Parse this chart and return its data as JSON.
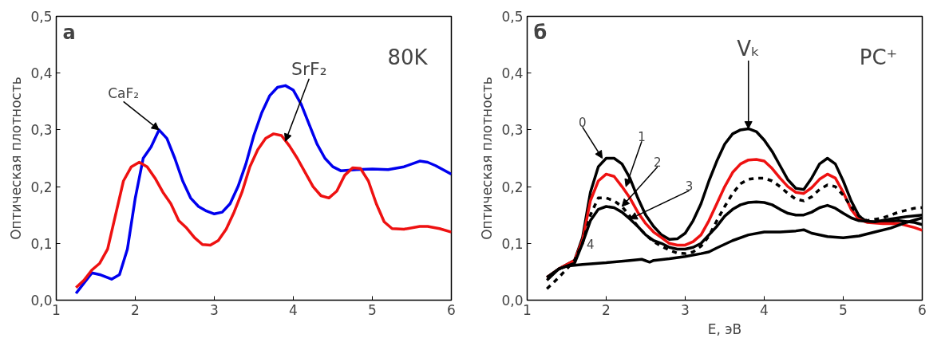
{
  "chart_data": [
    {
      "type": "line",
      "ylabel": "Оптическая плотность",
      "xlim": [
        1,
        6
      ],
      "ylim": [
        0,
        0.5
      ],
      "xticks": [
        1,
        2,
        3,
        4,
        5,
        6
      ],
      "yticks": [
        {
          "value": 0,
          "label": "0,0"
        },
        {
          "value": 0.1,
          "label": "0,1"
        },
        {
          "value": 0.2,
          "label": "0,2"
        },
        {
          "value": 0.3,
          "label": "0,3"
        },
        {
          "value": 0.4,
          "label": "0,4"
        },
        {
          "value": 0.5,
          "label": "0,5"
        }
      ],
      "grid": false,
      "line_style": "solid",
      "annotations": [
        "а",
        "80K",
        {
          "text": "CaF₂",
          "x": 2.3,
          "y": 0.3
        },
        {
          "text": "SrF₂",
          "x": 3.9,
          "y": 0.28
        }
      ],
      "series": [
        {
          "color": "#0000ee",
          "x": [
            1.25,
            1.35,
            1.45,
            1.55,
            1.7,
            1.8,
            1.9,
            2.0,
            2.1,
            2.2,
            2.3,
            2.4,
            2.5,
            2.6,
            2.7,
            2.8,
            2.9,
            3.0,
            3.1,
            3.2,
            3.3,
            3.4,
            3.5,
            3.6,
            3.7,
            3.8,
            3.9,
            4.0,
            4.1,
            4.2,
            4.3,
            4.4,
            4.5,
            4.6,
            4.8,
            5.0,
            5.2,
            5.4,
            5.6,
            5.7,
            5.8,
            6.0
          ],
          "values": [
            0.012,
            0.03,
            0.048,
            0.045,
            0.037,
            0.045,
            0.09,
            0.18,
            0.25,
            0.27,
            0.3,
            0.285,
            0.25,
            0.21,
            0.18,
            0.165,
            0.157,
            0.152,
            0.155,
            0.17,
            0.2,
            0.24,
            0.29,
            0.33,
            0.36,
            0.375,
            0.378,
            0.37,
            0.345,
            0.31,
            0.275,
            0.25,
            0.235,
            0.228,
            0.23,
            0.231,
            0.23,
            0.235,
            0.245,
            0.243,
            0.237,
            0.222
          ]
        },
        {
          "color": "#ee1111",
          "x": [
            1.25,
            1.35,
            1.45,
            1.55,
            1.65,
            1.75,
            1.85,
            1.95,
            2.05,
            2.15,
            2.25,
            2.35,
            2.45,
            2.55,
            2.65,
            2.75,
            2.85,
            2.95,
            3.05,
            3.15,
            3.25,
            3.35,
            3.45,
            3.55,
            3.65,
            3.75,
            3.85,
            3.95,
            4.05,
            4.15,
            4.25,
            4.35,
            4.45,
            4.55,
            4.65,
            4.75,
            4.85,
            4.95,
            5.05,
            5.15,
            5.25,
            5.4,
            5.6,
            5.7,
            5.85,
            6.0
          ],
          "values": [
            0.022,
            0.035,
            0.053,
            0.065,
            0.09,
            0.15,
            0.21,
            0.235,
            0.243,
            0.235,
            0.215,
            0.19,
            0.17,
            0.14,
            0.127,
            0.11,
            0.098,
            0.097,
            0.105,
            0.125,
            0.155,
            0.19,
            0.235,
            0.265,
            0.285,
            0.293,
            0.29,
            0.272,
            0.25,
            0.225,
            0.2,
            0.184,
            0.18,
            0.192,
            0.22,
            0.233,
            0.232,
            0.21,
            0.17,
            0.138,
            0.126,
            0.125,
            0.13,
            0.13,
            0.126,
            0.12
          ]
        }
      ]
    },
    {
      "type": "line",
      "xlabel": "E, эВ",
      "ylabel": "Оптическая плотность",
      "xlim": [
        1,
        6
      ],
      "ylim": [
        0,
        0.5
      ],
      "xticks": [
        1,
        2,
        3,
        4,
        5,
        6
      ],
      "yticks": [
        {
          "value": 0,
          "label": "0,0"
        },
        {
          "value": 0.1,
          "label": "0,1"
        },
        {
          "value": 0.2,
          "label": "0,2"
        },
        {
          "value": 0.3,
          "label": "0,3"
        },
        {
          "value": 0.4,
          "label": "0,4"
        },
        {
          "value": 0.5,
          "label": "0,5"
        }
      ],
      "grid": false,
      "line_style": "solid",
      "annotations": [
        "б",
        "PC⁺",
        {
          "text": "Vₖ",
          "x": 3.8,
          "y": 0.302
        },
        {
          "text": "0",
          "x": 1.95,
          "y": 0.25
        },
        {
          "text": "1",
          "x": 2.25,
          "y": 0.2
        },
        {
          "text": "2",
          "x": 2.2,
          "y": 0.165
        },
        {
          "text": "3",
          "x": 2.3,
          "y": 0.143
        },
        {
          "text": "4",
          "x": 2.0,
          "y": 0.066
        }
      ],
      "series": [
        {
          "color": "#000000",
          "x": [
            1.25,
            1.4,
            1.6,
            1.7,
            1.8,
            1.9,
            2.0,
            2.1,
            2.2,
            2.3,
            2.4,
            2.5,
            2.6,
            2.7,
            2.8,
            2.9,
            3.0,
            3.1,
            3.2,
            3.3,
            3.4,
            3.5,
            3.6,
            3.7,
            3.8,
            3.9,
            4.0,
            4.1,
            4.2,
            4.3,
            4.4,
            4.5,
            4.6,
            4.7,
            4.8,
            4.9,
            5.0,
            5.1,
            5.2,
            5.3,
            5.5,
            5.7,
            5.9,
            6.0
          ],
          "values": [
            0.04,
            0.055,
            0.07,
            0.11,
            0.19,
            0.235,
            0.25,
            0.25,
            0.24,
            0.215,
            0.18,
            0.15,
            0.13,
            0.115,
            0.107,
            0.108,
            0.118,
            0.14,
            0.17,
            0.21,
            0.245,
            0.275,
            0.293,
            0.3,
            0.302,
            0.297,
            0.282,
            0.262,
            0.237,
            0.212,
            0.197,
            0.195,
            0.215,
            0.24,
            0.25,
            0.24,
            0.21,
            0.175,
            0.148,
            0.138,
            0.138,
            0.14,
            0.137,
            0.133
          ]
        },
        {
          "color": "#ee1111",
          "x": [
            1.25,
            1.4,
            1.6,
            1.7,
            1.8,
            1.9,
            2.0,
            2.1,
            2.2,
            2.3,
            2.4,
            2.5,
            2.6,
            2.7,
            2.8,
            2.9,
            3.0,
            3.1,
            3.2,
            3.3,
            3.4,
            3.5,
            3.6,
            3.7,
            3.8,
            3.9,
            4.0,
            4.1,
            4.2,
            4.3,
            4.4,
            4.5,
            4.6,
            4.7,
            4.8,
            4.9,
            5.0,
            5.1,
            5.2,
            5.3,
            5.5,
            5.7,
            5.9,
            6.0
          ],
          "values": [
            0.04,
            0.055,
            0.07,
            0.105,
            0.175,
            0.21,
            0.222,
            0.218,
            0.2,
            0.18,
            0.155,
            0.135,
            0.12,
            0.11,
            0.1,
            0.097,
            0.097,
            0.103,
            0.115,
            0.14,
            0.17,
            0.2,
            0.225,
            0.24,
            0.247,
            0.248,
            0.245,
            0.232,
            0.215,
            0.2,
            0.19,
            0.188,
            0.198,
            0.213,
            0.222,
            0.215,
            0.19,
            0.16,
            0.142,
            0.137,
            0.135,
            0.135,
            0.128,
            0.123
          ]
        },
        {
          "color": "#000000",
          "line_style": "dashed",
          "x": [
            1.25,
            1.4,
            1.6,
            1.7,
            1.8,
            1.9,
            2.0,
            2.1,
            2.2,
            2.3,
            2.4,
            2.5,
            2.6,
            2.7,
            2.8,
            2.9,
            3.0,
            3.1,
            3.2,
            3.3,
            3.4,
            3.5,
            3.6,
            3.7,
            3.8,
            3.9,
            4.0,
            4.1,
            4.2,
            4.3,
            4.4,
            4.5,
            4.6,
            4.7,
            4.8,
            4.9,
            5.0,
            5.1,
            5.2,
            5.3,
            5.5,
            5.7,
            5.9,
            6.0
          ],
          "values": [
            0.02,
            0.04,
            0.07,
            0.1,
            0.15,
            0.18,
            0.18,
            0.175,
            0.165,
            0.148,
            0.13,
            0.115,
            0.103,
            0.095,
            0.088,
            0.083,
            0.082,
            0.085,
            0.095,
            0.113,
            0.14,
            0.165,
            0.188,
            0.205,
            0.213,
            0.215,
            0.215,
            0.21,
            0.2,
            0.188,
            0.178,
            0.175,
            0.182,
            0.195,
            0.203,
            0.2,
            0.185,
            0.165,
            0.148,
            0.14,
            0.145,
            0.155,
            0.162,
            0.163
          ]
        },
        {
          "color": "#000000",
          "x": [
            1.25,
            1.4,
            1.6,
            1.7,
            1.8,
            1.9,
            2.0,
            2.1,
            2.2,
            2.3,
            2.4,
            2.5,
            2.6,
            2.7,
            2.8,
            2.9,
            3.0,
            3.1,
            3.2,
            3.3,
            3.4,
            3.5,
            3.6,
            3.7,
            3.8,
            3.9,
            4.0,
            4.1,
            4.2,
            4.3,
            4.4,
            4.5,
            4.6,
            4.7,
            4.8,
            4.9,
            5.0,
            5.1,
            5.2,
            5.4,
            5.6,
            5.8,
            6.0
          ],
          "values": [
            0.035,
            0.055,
            0.065,
            0.1,
            0.14,
            0.16,
            0.165,
            0.163,
            0.155,
            0.143,
            0.13,
            0.115,
            0.105,
            0.1,
            0.093,
            0.09,
            0.09,
            0.093,
            0.1,
            0.115,
            0.13,
            0.148,
            0.16,
            0.168,
            0.172,
            0.173,
            0.172,
            0.168,
            0.16,
            0.153,
            0.15,
            0.15,
            0.155,
            0.163,
            0.167,
            0.162,
            0.153,
            0.145,
            0.14,
            0.138,
            0.143,
            0.147,
            0.15
          ]
        },
        {
          "color": "#000000",
          "x": [
            1.25,
            1.4,
            1.5,
            1.7,
            2.0,
            2.3,
            2.45,
            2.55,
            2.6,
            2.8,
            3.0,
            3.2,
            3.3,
            3.4,
            3.6,
            3.8,
            4.0,
            4.2,
            4.4,
            4.5,
            4.6,
            4.8,
            5.0,
            5.2,
            5.4,
            5.6,
            5.8,
            6.0
          ],
          "values": [
            0.04,
            0.055,
            0.06,
            0.063,
            0.066,
            0.07,
            0.072,
            0.067,
            0.07,
            0.073,
            0.077,
            0.082,
            0.085,
            0.092,
            0.105,
            0.115,
            0.12,
            0.12,
            0.122,
            0.124,
            0.118,
            0.112,
            0.11,
            0.113,
            0.12,
            0.127,
            0.137,
            0.145
          ]
        }
      ]
    }
  ]
}
